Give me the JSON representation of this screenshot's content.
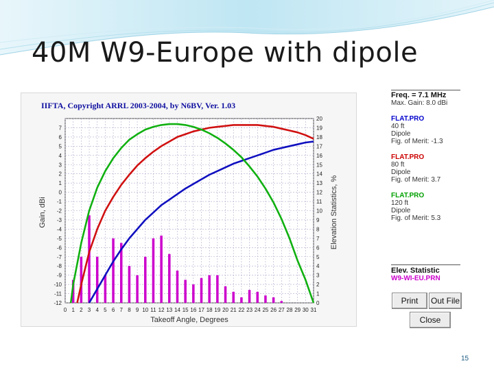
{
  "slide": {
    "title": "40M W9-Europe with dipole",
    "page_number": "15"
  },
  "side_panel": {
    "freq_label": "Freq. = 7.1 MHz",
    "max_gain": "Max. Gain: 8.0 dBi",
    "entries": [
      {
        "file": "FLAT.PRO",
        "height": "40 ft",
        "antenna": "Dipole",
        "merit": "Fig. of Merit: -1.3",
        "color": "#1010c0"
      },
      {
        "file": "FLAT.PRO",
        "height": "80 ft",
        "antenna": "Dipole",
        "merit": "Fig. of Merit: 3.7",
        "color": "#d01010"
      },
      {
        "file": "FLAT.PRO",
        "height": "120 ft",
        "antenna": "Dipole",
        "merit": "Fig. of Merit: 5.3",
        "color": "#10b010"
      }
    ],
    "elev_statistic_label": "Elev. Statistic",
    "elev_file": "W9-WI-EU.PRN",
    "buttons": {
      "print": "Print",
      "out_file": "Out File",
      "close": "Close"
    }
  },
  "chart_data": {
    "type": "line",
    "title": "IIFTA, Copyright ARRL 2003-2004, by N6BV, Ver. 1.03",
    "xlabel": "Takeoff Angle, Degrees",
    "ylabel_left": "Gain, dBi",
    "ylabel_right": "Elevation Statistics, %",
    "xlim": [
      0,
      31
    ],
    "ylim_left": [
      -12,
      8
    ],
    "ylim_right": [
      0,
      20
    ],
    "x_ticks": [
      0,
      1,
      2,
      3,
      4,
      5,
      6,
      7,
      8,
      9,
      10,
      11,
      12,
      13,
      14,
      15,
      16,
      17,
      18,
      19,
      20,
      21,
      22,
      23,
      24,
      25,
      26,
      27,
      28,
      29,
      30,
      31
    ],
    "y_ticks_left": [
      -12,
      -11,
      -10,
      -9,
      -8,
      -7,
      -6,
      -5,
      -4,
      -3,
      -2,
      -1,
      0,
      1,
      2,
      3,
      4,
      5,
      6,
      7
    ],
    "y_ticks_right": [
      0,
      1,
      2,
      3,
      4,
      5,
      6,
      7,
      8,
      9,
      10,
      11,
      12,
      13,
      14,
      15,
      16,
      17,
      18,
      19,
      20
    ],
    "grid": true,
    "series": [
      {
        "name": "40 ft",
        "color": "#1010c0",
        "x": [
          3,
          4,
          5,
          6,
          7,
          8,
          9,
          10,
          11,
          12,
          13,
          14,
          15,
          16,
          17,
          18,
          19,
          20,
          21,
          22,
          23,
          24,
          25,
          26,
          27,
          28,
          29,
          30,
          31
        ],
        "y": [
          -12,
          -10.5,
          -9,
          -7.5,
          -6.2,
          -5,
          -4,
          -3,
          -2.2,
          -1.4,
          -0.8,
          -0.2,
          0.4,
          0.9,
          1.4,
          1.9,
          2.3,
          2.7,
          3.1,
          3.4,
          3.7,
          4.0,
          4.3,
          4.6,
          4.8,
          5.0,
          5.2,
          5.4,
          5.5
        ]
      },
      {
        "name": "80 ft",
        "color": "#d01010",
        "x": [
          1.5,
          2,
          3,
          4,
          5,
          6,
          7,
          8,
          9,
          10,
          11,
          12,
          13,
          14,
          15,
          16,
          17,
          18,
          19,
          20,
          21,
          22,
          23,
          24,
          25,
          26,
          27,
          28,
          29,
          30,
          31
        ],
        "y": [
          -12,
          -10,
          -6.5,
          -4,
          -2,
          -0.5,
          0.8,
          1.9,
          2.9,
          3.7,
          4.4,
          5.0,
          5.5,
          6.0,
          6.3,
          6.6,
          6.8,
          7.0,
          7.1,
          7.2,
          7.3,
          7.3,
          7.3,
          7.3,
          7.2,
          7.1,
          6.9,
          6.7,
          6.5,
          6.2,
          5.8
        ]
      },
      {
        "name": "120 ft",
        "color": "#10b010",
        "x": [
          0.7,
          1,
          2,
          3,
          4,
          5,
          6,
          7,
          8,
          9,
          10,
          11,
          12,
          13,
          14,
          15,
          16,
          17,
          18,
          19,
          20,
          21,
          22,
          23,
          24,
          25,
          26,
          27,
          28,
          29,
          30,
          31
        ],
        "y": [
          -12,
          -10,
          -5.5,
          -2,
          0.5,
          2.3,
          3.7,
          4.8,
          5.7,
          6.3,
          6.8,
          7.1,
          7.3,
          7.4,
          7.4,
          7.3,
          7.1,
          6.8,
          6.4,
          5.9,
          5.3,
          4.6,
          3.8,
          2.8,
          1.7,
          0.4,
          -1.1,
          -2.9,
          -5,
          -7.4,
          -9.5,
          -12
        ]
      }
    ],
    "bars": {
      "name": "W9-WI-EU.PRN",
      "color": "#cc00cc",
      "x": [
        1,
        2,
        3,
        4,
        5,
        6,
        7,
        8,
        9,
        10,
        11,
        12,
        13,
        14,
        15,
        16,
        17,
        18,
        19,
        20,
        21,
        22,
        23,
        24,
        25,
        26,
        27,
        28,
        29,
        30,
        31
      ],
      "values": [
        2.5,
        5,
        9.5,
        5,
        3,
        7,
        6.5,
        4,
        3,
        5,
        7,
        7.3,
        5.3,
        3.5,
        2.5,
        2,
        2.7,
        3,
        3,
        1.8,
        1.2,
        0.6,
        1.4,
        1.2,
        0.8,
        0.6,
        0.2,
        0,
        0,
        0,
        0
      ]
    }
  }
}
